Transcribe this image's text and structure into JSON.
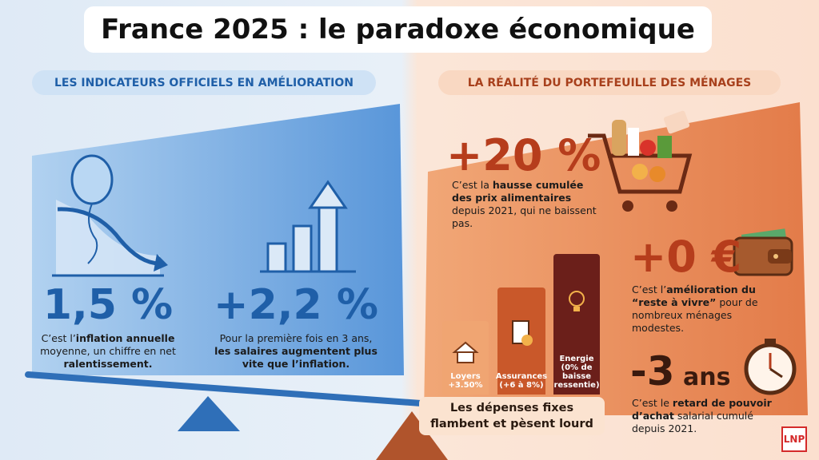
{
  "header": {
    "title": "France 2025 : le paradoxe économique"
  },
  "left": {
    "heading": "LES INDICATEURS OFFICIELS EN AMÉLIORATION",
    "items": [
      {
        "figure": "1,5 %",
        "desc": [
          "C’est l’",
          "inflation annuelle",
          " moyenne, un chiffre en net ",
          "ralentissement."
        ]
      },
      {
        "figure": "+2,2 %",
        "desc": [
          "Pour la première fois en 3 ans, ",
          "les salaires augmentent plus vite que l’inflation."
        ]
      }
    ]
  },
  "right": {
    "heading": "LA RÉALITÉ DU PORTEFEUILLE DES MÉNAGES",
    "items": [
      {
        "figure": "+20 %",
        "desc": [
          "C’est la ",
          "hausse cumulée des prix alimentaires",
          " depuis 2021, qui ne baissent pas."
        ]
      },
      {
        "figure": "+0 €",
        "desc": [
          "C’est l’",
          "amélioration du “reste à vivre”",
          " pour de nombreux ménages modestes."
        ]
      },
      {
        "figure": "-3",
        "figure_unit": "ans",
        "desc": [
          "C’est le ",
          "retard de pouvoir d’achat",
          " salarial cumulé depuis 2021."
        ]
      }
    ],
    "expenses": [
      {
        "label": "Loyers",
        "detail": "+3.50%"
      },
      {
        "label": "Assurances",
        "detail": "(+6 à 8%)"
      },
      {
        "label": "Energie",
        "detail": "(0% de baisse ressentie)"
      }
    ],
    "banner": "Les dépenses fixes flambent et pèsent lourd"
  },
  "logo": "LNP"
}
